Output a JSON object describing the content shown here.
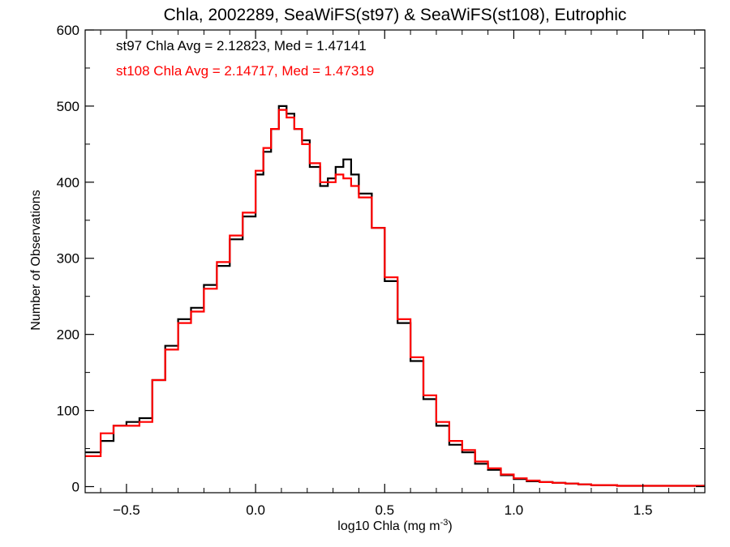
{
  "chart_data": {
    "type": "line",
    "title": "Chla, 2002289, SeaWiFS(st97) & SeaWiFS(st108), Eutrophic",
    "xlabel": "log10 Chla (mg m",
    "xlabel_sup": "-3",
    "xlabel_close": ")",
    "ylabel": "Number of Observations",
    "xlim": [
      -0.66,
      1.74
    ],
    "ylim": [
      -8,
      600
    ],
    "xticks": [
      -0.5,
      0.0,
      0.5,
      1.0,
      1.5
    ],
    "xtick_labels": [
      "−0.5",
      "0.0",
      "0.5",
      "1.0",
      "1.5"
    ],
    "yticks": [
      0,
      100,
      200,
      300,
      400,
      500,
      600
    ],
    "ytick_labels": [
      "0",
      "100",
      "200",
      "300",
      "400",
      "500",
      "600"
    ],
    "grid": false,
    "annotations": [
      {
        "text": "st97 Chla Avg = 2.12823, Med = 1.47141",
        "color": "#000000"
      },
      {
        "text": "st108 Chla Avg = 2.14717, Med = 1.47319",
        "color": "#ff0000"
      }
    ],
    "series": [
      {
        "color": "#000000",
        "x": [
          -0.66,
          -0.6,
          -0.55,
          -0.5,
          -0.45,
          -0.4,
          -0.35,
          -0.3,
          -0.25,
          -0.2,
          -0.15,
          -0.1,
          -0.05,
          0.0,
          0.03,
          0.06,
          0.09,
          0.12,
          0.15,
          0.18,
          0.21,
          0.25,
          0.28,
          0.31,
          0.34,
          0.37,
          0.4,
          0.45,
          0.5,
          0.55,
          0.6,
          0.65,
          0.7,
          0.75,
          0.8,
          0.85,
          0.9,
          0.95,
          1.0,
          1.05,
          1.1,
          1.15,
          1.2,
          1.25,
          1.3,
          1.35,
          1.4,
          1.5,
          1.6,
          1.74
        ],
        "values": [
          45,
          60,
          80,
          85,
          90,
          140,
          185,
          220,
          235,
          265,
          290,
          325,
          355,
          410,
          440,
          470,
          500,
          490,
          470,
          455,
          420,
          395,
          405,
          420,
          430,
          410,
          385,
          340,
          270,
          215,
          165,
          115,
          80,
          55,
          45,
          30,
          22,
          15,
          10,
          7,
          6,
          5,
          4,
          3,
          2,
          2,
          1,
          1,
          1,
          0
        ]
      },
      {
        "color": "#ff0000",
        "x": [
          -0.66,
          -0.6,
          -0.55,
          -0.5,
          -0.45,
          -0.4,
          -0.35,
          -0.3,
          -0.25,
          -0.2,
          -0.15,
          -0.1,
          -0.05,
          0.0,
          0.03,
          0.06,
          0.09,
          0.12,
          0.15,
          0.18,
          0.21,
          0.25,
          0.28,
          0.31,
          0.34,
          0.37,
          0.4,
          0.45,
          0.5,
          0.55,
          0.6,
          0.65,
          0.7,
          0.75,
          0.8,
          0.85,
          0.9,
          0.95,
          1.0,
          1.05,
          1.1,
          1.15,
          1.2,
          1.25,
          1.3,
          1.35,
          1.4,
          1.5,
          1.6,
          1.74
        ],
        "values": [
          40,
          70,
          80,
          80,
          85,
          140,
          180,
          215,
          230,
          260,
          295,
          330,
          360,
          415,
          445,
          470,
          495,
          485,
          470,
          450,
          425,
          400,
          400,
          410,
          405,
          395,
          380,
          340,
          275,
          220,
          170,
          120,
          85,
          60,
          48,
          33,
          24,
          16,
          11,
          8,
          6,
          5,
          4,
          3,
          2,
          2,
          1,
          1,
          1,
          0
        ]
      }
    ]
  }
}
